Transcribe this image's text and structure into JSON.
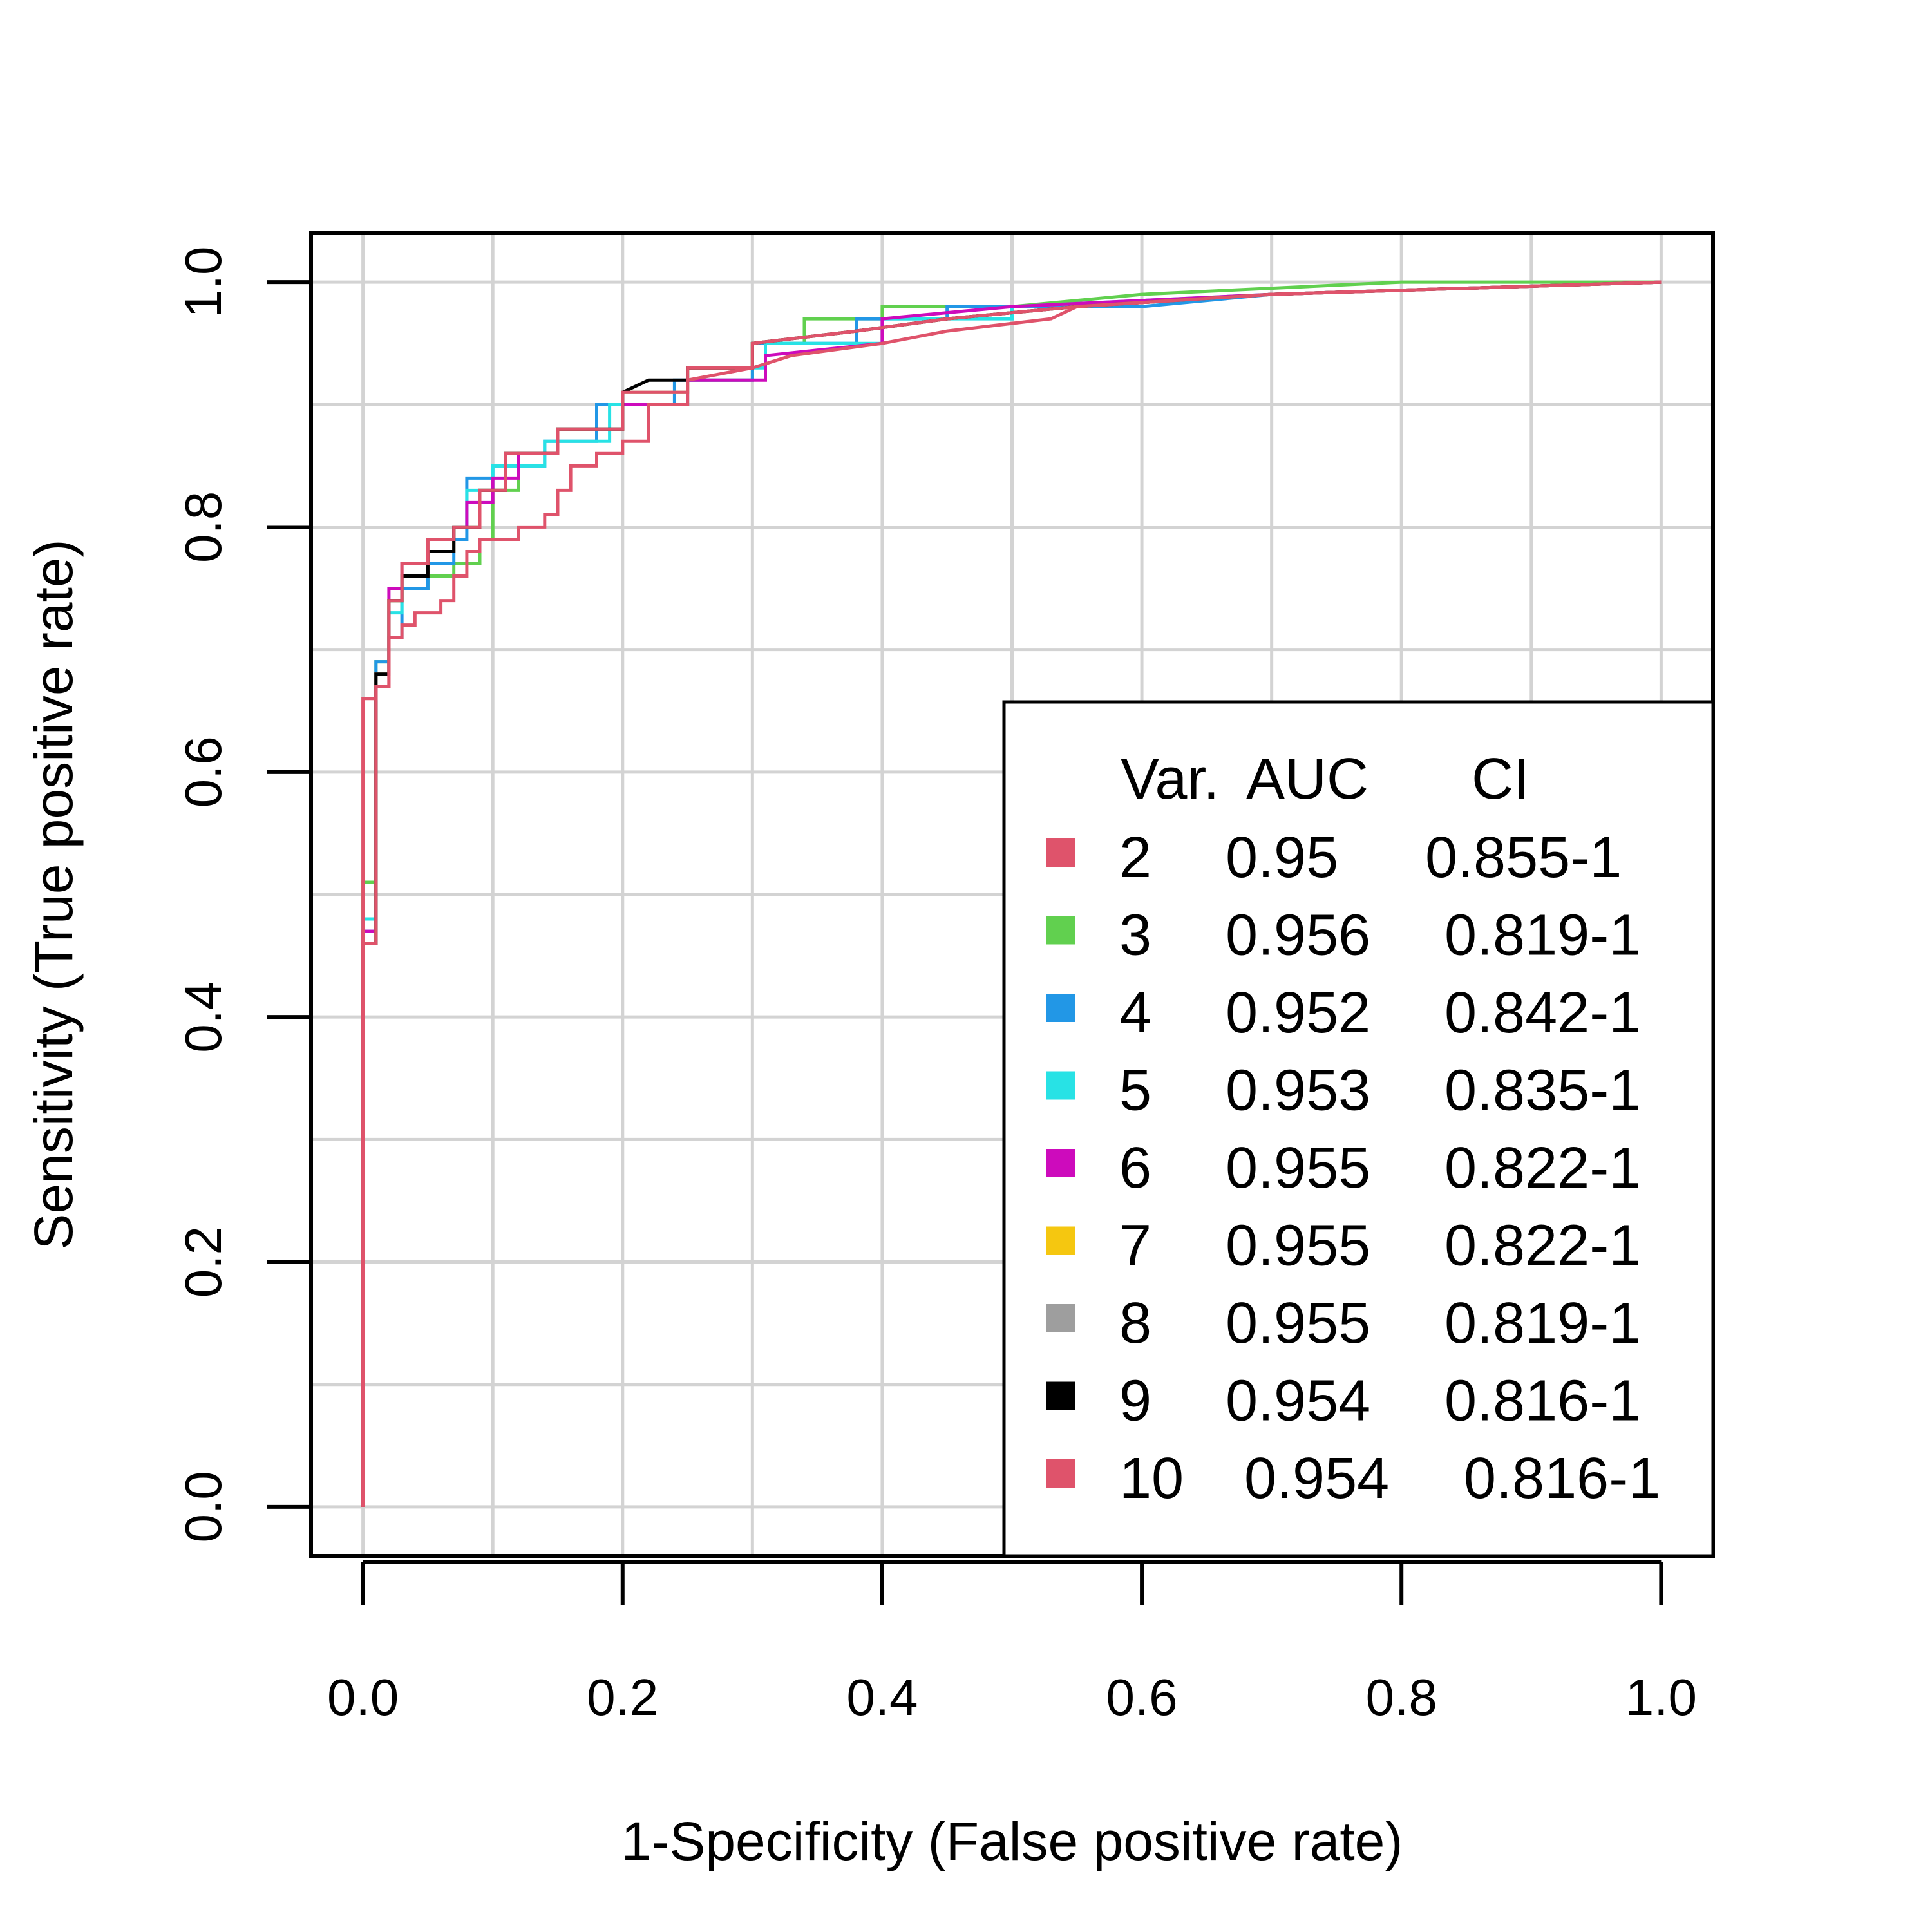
{
  "chart_data": {
    "type": "line",
    "title": "",
    "xlabel": "1-Specificity (False positive rate)",
    "ylabel": "Sensitivity (True positive rate)",
    "xlim": [
      -0.04,
      1.04
    ],
    "ylim": [
      -0.04,
      1.04
    ],
    "x_ticks": [
      0.0,
      0.2,
      0.4,
      0.6,
      0.8,
      1.0
    ],
    "y_ticks": [
      0.0,
      0.2,
      0.4,
      0.6,
      0.8,
      1.0
    ],
    "x_tick_labels": [
      "0.0",
      "0.2",
      "0.4",
      "0.6",
      "0.8",
      "1.0"
    ],
    "y_tick_labels": [
      "0.0",
      "0.2",
      "0.4",
      "0.6",
      "0.8",
      "1.0"
    ],
    "grid": true,
    "grid_x": [
      0.0,
      0.1,
      0.2,
      0.3,
      0.4,
      0.5,
      0.6,
      0.7,
      0.8,
      0.9,
      1.0
    ],
    "grid_y": [
      0.0,
      0.1,
      0.2,
      0.3,
      0.4,
      0.5,
      0.6,
      0.7,
      0.8,
      0.9,
      1.0
    ],
    "legend": {
      "position": "bottom-right",
      "header": {
        "var": "Var.",
        "auc": "AUC",
        "ci": "CI"
      },
      "entries": [
        {
          "var": "2",
          "auc": "0.95",
          "ci": "0.855-1",
          "color": "#DF536B"
        },
        {
          "var": "3",
          "auc": "0.956",
          "ci": "0.819-1",
          "color": "#61D04F"
        },
        {
          "var": "4",
          "auc": "0.952",
          "ci": "0.842-1",
          "color": "#2297E6"
        },
        {
          "var": "5",
          "auc": "0.953",
          "ci": "0.835-1",
          "color": "#28E2E5"
        },
        {
          "var": "6",
          "auc": "0.955",
          "ci": "0.822-1",
          "color": "#CD0BBC"
        },
        {
          "var": "7",
          "auc": "0.955",
          "ci": "0.822-1",
          "color": "#F5C710"
        },
        {
          "var": "8",
          "auc": "0.955",
          "ci": "0.819-1",
          "color": "#9E9E9E"
        },
        {
          "var": "9",
          "auc": "0.954",
          "ci": "0.816-1",
          "color": "#000000"
        },
        {
          "var": "10",
          "auc": "0.954",
          "ci": "0.816-1",
          "color": "#DF536B"
        }
      ]
    },
    "series": [
      {
        "color": "#61D04F",
        "points": [
          [
            0,
            0
          ],
          [
            0,
            0.51
          ],
          [
            0.01,
            0.51
          ],
          [
            0.01,
            0.69
          ],
          [
            0.02,
            0.69
          ],
          [
            0.02,
            0.74
          ],
          [
            0.03,
            0.74
          ],
          [
            0.03,
            0.75
          ],
          [
            0.05,
            0.75
          ],
          [
            0.05,
            0.76
          ],
          [
            0.07,
            0.76
          ],
          [
            0.07,
            0.77
          ],
          [
            0.09,
            0.77
          ],
          [
            0.09,
            0.79
          ],
          [
            0.1,
            0.79
          ],
          [
            0.1,
            0.83
          ],
          [
            0.12,
            0.83
          ],
          [
            0.12,
            0.86
          ],
          [
            0.15,
            0.86
          ],
          [
            0.15,
            0.88
          ],
          [
            0.2,
            0.88
          ],
          [
            0.2,
            0.9
          ],
          [
            0.25,
            0.9
          ],
          [
            0.25,
            0.92
          ],
          [
            0.3,
            0.92
          ],
          [
            0.3,
            0.95
          ],
          [
            0.34,
            0.95
          ],
          [
            0.34,
            0.97
          ],
          [
            0.4,
            0.97
          ],
          [
            0.4,
            0.98
          ],
          [
            0.5,
            0.98
          ],
          [
            0.6,
            0.99
          ],
          [
            0.8,
            1.0
          ],
          [
            1.0,
            1.0
          ]
        ]
      },
      {
        "color": "#2297E6",
        "points": [
          [
            0,
            0
          ],
          [
            0,
            0.47
          ],
          [
            0.01,
            0.47
          ],
          [
            0.01,
            0.69
          ],
          [
            0.02,
            0.69
          ],
          [
            0.02,
            0.71
          ],
          [
            0.03,
            0.71
          ],
          [
            0.03,
            0.75
          ],
          [
            0.05,
            0.75
          ],
          [
            0.05,
            0.77
          ],
          [
            0.07,
            0.77
          ],
          [
            0.07,
            0.79
          ],
          [
            0.08,
            0.79
          ],
          [
            0.08,
            0.84
          ],
          [
            0.1,
            0.84
          ],
          [
            0.1,
            0.85
          ],
          [
            0.14,
            0.85
          ],
          [
            0.14,
            0.87
          ],
          [
            0.18,
            0.87
          ],
          [
            0.18,
            0.9
          ],
          [
            0.24,
            0.9
          ],
          [
            0.24,
            0.92
          ],
          [
            0.3,
            0.92
          ],
          [
            0.3,
            0.95
          ],
          [
            0.38,
            0.95
          ],
          [
            0.38,
            0.97
          ],
          [
            0.45,
            0.97
          ],
          [
            0.45,
            0.98
          ],
          [
            0.6,
            0.98
          ],
          [
            0.7,
            0.99
          ],
          [
            1.0,
            1.0
          ]
        ]
      },
      {
        "color": "#28E2E5",
        "points": [
          [
            0,
            0
          ],
          [
            0,
            0.48
          ],
          [
            0.01,
            0.48
          ],
          [
            0.01,
            0.68
          ],
          [
            0.02,
            0.68
          ],
          [
            0.02,
            0.73
          ],
          [
            0.03,
            0.73
          ],
          [
            0.03,
            0.76
          ],
          [
            0.05,
            0.76
          ],
          [
            0.05,
            0.78
          ],
          [
            0.07,
            0.78
          ],
          [
            0.07,
            0.8
          ],
          [
            0.08,
            0.8
          ],
          [
            0.08,
            0.83
          ],
          [
            0.1,
            0.83
          ],
          [
            0.1,
            0.85
          ],
          [
            0.14,
            0.85
          ],
          [
            0.14,
            0.87
          ],
          [
            0.19,
            0.87
          ],
          [
            0.19,
            0.9
          ],
          [
            0.25,
            0.9
          ],
          [
            0.25,
            0.93
          ],
          [
            0.31,
            0.93
          ],
          [
            0.31,
            0.95
          ],
          [
            0.4,
            0.95
          ],
          [
            0.4,
            0.97
          ],
          [
            0.5,
            0.97
          ],
          [
            0.5,
            0.98
          ],
          [
            0.7,
            0.99
          ],
          [
            1.0,
            1.0
          ]
        ]
      },
      {
        "color": "#CD0BBC",
        "points": [
          [
            0,
            0
          ],
          [
            0,
            0.47
          ],
          [
            0.01,
            0.47
          ],
          [
            0.01,
            0.68
          ],
          [
            0.02,
            0.68
          ],
          [
            0.02,
            0.75
          ],
          [
            0.03,
            0.75
          ],
          [
            0.03,
            0.77
          ],
          [
            0.05,
            0.77
          ],
          [
            0.05,
            0.78
          ],
          [
            0.07,
            0.78
          ],
          [
            0.07,
            0.8
          ],
          [
            0.08,
            0.8
          ],
          [
            0.08,
            0.82
          ],
          [
            0.1,
            0.82
          ],
          [
            0.1,
            0.84
          ],
          [
            0.12,
            0.84
          ],
          [
            0.12,
            0.86
          ],
          [
            0.15,
            0.86
          ],
          [
            0.15,
            0.88
          ],
          [
            0.2,
            0.88
          ],
          [
            0.2,
            0.9
          ],
          [
            0.25,
            0.9
          ],
          [
            0.25,
            0.92
          ],
          [
            0.31,
            0.92
          ],
          [
            0.31,
            0.94
          ],
          [
            0.4,
            0.95
          ],
          [
            0.4,
            0.97
          ],
          [
            0.5,
            0.98
          ],
          [
            0.7,
            0.99
          ],
          [
            1.0,
            1.0
          ]
        ]
      },
      {
        "color": "#F5C710",
        "points": [
          [
            0,
            0
          ],
          [
            0,
            0.46
          ],
          [
            0.01,
            0.46
          ],
          [
            0.01,
            0.68
          ],
          [
            0.02,
            0.68
          ],
          [
            0.02,
            0.74
          ],
          [
            0.03,
            0.74
          ],
          [
            0.03,
            0.76
          ],
          [
            0.05,
            0.76
          ],
          [
            0.05,
            0.78
          ],
          [
            0.07,
            0.78
          ],
          [
            0.07,
            0.8
          ],
          [
            0.09,
            0.8
          ],
          [
            0.09,
            0.83
          ],
          [
            0.11,
            0.83
          ],
          [
            0.11,
            0.86
          ],
          [
            0.15,
            0.86
          ],
          [
            0.15,
            0.88
          ],
          [
            0.2,
            0.88
          ],
          [
            0.2,
            0.91
          ],
          [
            0.25,
            0.91
          ],
          [
            0.25,
            0.93
          ],
          [
            0.3,
            0.93
          ],
          [
            0.3,
            0.95
          ],
          [
            0.38,
            0.96
          ],
          [
            0.45,
            0.97
          ],
          [
            0.55,
            0.98
          ],
          [
            0.7,
            0.99
          ],
          [
            1.0,
            1.0
          ]
        ]
      },
      {
        "color": "#9E9E9E",
        "points": [
          [
            0,
            0
          ],
          [
            0,
            0.46
          ],
          [
            0.01,
            0.46
          ],
          [
            0.01,
            0.68
          ],
          [
            0.02,
            0.68
          ],
          [
            0.02,
            0.74
          ],
          [
            0.03,
            0.74
          ],
          [
            0.03,
            0.76
          ],
          [
            0.05,
            0.76
          ],
          [
            0.05,
            0.79
          ],
          [
            0.07,
            0.79
          ],
          [
            0.07,
            0.8
          ],
          [
            0.09,
            0.8
          ],
          [
            0.09,
            0.83
          ],
          [
            0.11,
            0.83
          ],
          [
            0.11,
            0.86
          ],
          [
            0.15,
            0.86
          ],
          [
            0.15,
            0.88
          ],
          [
            0.2,
            0.88
          ],
          [
            0.2,
            0.91
          ],
          [
            0.25,
            0.91
          ],
          [
            0.25,
            0.93
          ],
          [
            0.3,
            0.93
          ],
          [
            0.3,
            0.95
          ],
          [
            0.38,
            0.96
          ],
          [
            0.45,
            0.97
          ],
          [
            0.55,
            0.98
          ],
          [
            0.7,
            0.99
          ],
          [
            1.0,
            1.0
          ]
        ]
      },
      {
        "color": "#000000",
        "points": [
          [
            0,
            0
          ],
          [
            0,
            0.46
          ],
          [
            0.01,
            0.46
          ],
          [
            0.01,
            0.68
          ],
          [
            0.02,
            0.68
          ],
          [
            0.02,
            0.74
          ],
          [
            0.03,
            0.74
          ],
          [
            0.03,
            0.76
          ],
          [
            0.05,
            0.76
          ],
          [
            0.05,
            0.78
          ],
          [
            0.07,
            0.78
          ],
          [
            0.07,
            0.8
          ],
          [
            0.09,
            0.8
          ],
          [
            0.09,
            0.83
          ],
          [
            0.11,
            0.83
          ],
          [
            0.11,
            0.86
          ],
          [
            0.15,
            0.86
          ],
          [
            0.15,
            0.88
          ],
          [
            0.2,
            0.88
          ],
          [
            0.2,
            0.91
          ],
          [
            0.22,
            0.92
          ],
          [
            0.25,
            0.92
          ],
          [
            0.25,
            0.93
          ],
          [
            0.3,
            0.93
          ],
          [
            0.3,
            0.95
          ],
          [
            0.38,
            0.96
          ],
          [
            0.45,
            0.97
          ],
          [
            0.55,
            0.98
          ],
          [
            0.7,
            0.99
          ],
          [
            1.0,
            1.0
          ]
        ]
      },
      {
        "color": "#DF536B",
        "points": [
          [
            0,
            0
          ],
          [
            0,
            0.66
          ],
          [
            0.01,
            0.66
          ],
          [
            0.01,
            0.67
          ],
          [
            0.02,
            0.67
          ],
          [
            0.02,
            0.71
          ],
          [
            0.03,
            0.71
          ],
          [
            0.03,
            0.72
          ],
          [
            0.04,
            0.72
          ],
          [
            0.04,
            0.73
          ],
          [
            0.06,
            0.73
          ],
          [
            0.06,
            0.74
          ],
          [
            0.07,
            0.74
          ],
          [
            0.07,
            0.76
          ],
          [
            0.08,
            0.76
          ],
          [
            0.08,
            0.78
          ],
          [
            0.09,
            0.78
          ],
          [
            0.09,
            0.79
          ],
          [
            0.12,
            0.79
          ],
          [
            0.12,
            0.8
          ],
          [
            0.14,
            0.8
          ],
          [
            0.14,
            0.81
          ],
          [
            0.15,
            0.81
          ],
          [
            0.15,
            0.83
          ],
          [
            0.16,
            0.83
          ],
          [
            0.16,
            0.85
          ],
          [
            0.18,
            0.85
          ],
          [
            0.18,
            0.86
          ],
          [
            0.2,
            0.86
          ],
          [
            0.2,
            0.87
          ],
          [
            0.22,
            0.87
          ],
          [
            0.22,
            0.9
          ],
          [
            0.25,
            0.9
          ],
          [
            0.25,
            0.92
          ],
          [
            0.3,
            0.93
          ],
          [
            0.33,
            0.94
          ],
          [
            0.4,
            0.95
          ],
          [
            0.45,
            0.96
          ],
          [
            0.53,
            0.97
          ],
          [
            0.55,
            0.98
          ],
          [
            0.7,
            0.99
          ],
          [
            1.0,
            1.0
          ]
        ]
      },
      {
        "color": "#DF536B",
        "points": [
          [
            0,
            0
          ],
          [
            0,
            0.46
          ],
          [
            0.01,
            0.46
          ],
          [
            0.01,
            0.67
          ],
          [
            0.02,
            0.67
          ],
          [
            0.02,
            0.74
          ],
          [
            0.03,
            0.74
          ],
          [
            0.03,
            0.77
          ],
          [
            0.05,
            0.77
          ],
          [
            0.05,
            0.79
          ],
          [
            0.07,
            0.79
          ],
          [
            0.07,
            0.8
          ],
          [
            0.09,
            0.8
          ],
          [
            0.09,
            0.83
          ],
          [
            0.11,
            0.83
          ],
          [
            0.11,
            0.86
          ],
          [
            0.15,
            0.86
          ],
          [
            0.15,
            0.88
          ],
          [
            0.2,
            0.88
          ],
          [
            0.2,
            0.91
          ],
          [
            0.25,
            0.91
          ],
          [
            0.25,
            0.93
          ],
          [
            0.3,
            0.93
          ],
          [
            0.3,
            0.95
          ],
          [
            0.38,
            0.96
          ],
          [
            0.45,
            0.97
          ],
          [
            0.55,
            0.98
          ],
          [
            0.7,
            0.99
          ],
          [
            1.0,
            1.0
          ]
        ]
      }
    ]
  }
}
